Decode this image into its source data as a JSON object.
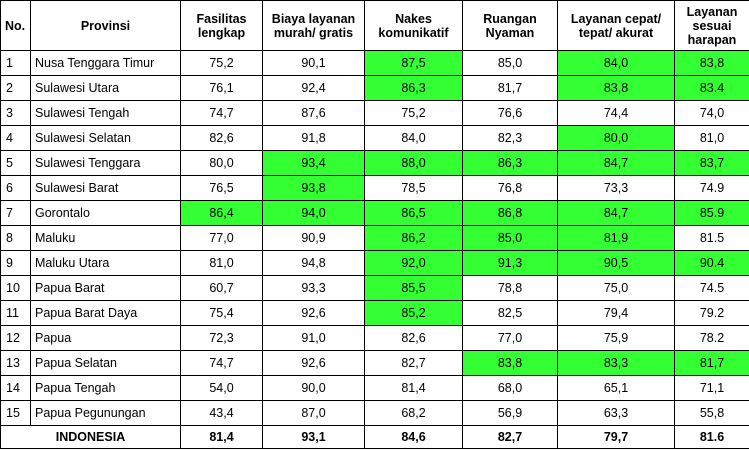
{
  "table": {
    "headers": [
      "No.",
      "Provinsi",
      "Fasilitas lengkap",
      "Biaya layanan murah/ gratis",
      "Nakes komunikatif",
      "Ruangan Nyaman",
      "Layanan cepat/ tepat/ akurat",
      "Layanan sesuai harapan"
    ],
    "highlight_color": "#33ff33",
    "rows": [
      {
        "no": "1",
        "provinsi": "Nusa Tenggara Timur",
        "values": [
          "75,2",
          "90,1",
          "87,5",
          "85,0",
          "84,0",
          "83,8"
        ],
        "highlight": [
          false,
          false,
          true,
          false,
          true,
          true
        ]
      },
      {
        "no": "2",
        "provinsi": "Sulawesi Utara",
        "values": [
          "76,1",
          "92,4",
          "86,3",
          "81,7",
          "83,8",
          "83.4"
        ],
        "highlight": [
          false,
          false,
          true,
          false,
          true,
          true
        ]
      },
      {
        "no": "3",
        "provinsi": "Sulawesi Tengah",
        "values": [
          "74,7",
          "87,6",
          "75,2",
          "76,6",
          "74,4",
          "74,0"
        ],
        "highlight": [
          false,
          false,
          false,
          false,
          false,
          false
        ]
      },
      {
        "no": "4",
        "provinsi": "Sulawesi Selatan",
        "values": [
          "82,6",
          "91,8",
          "84,0",
          "82,3",
          "80,0",
          "81,0"
        ],
        "highlight": [
          false,
          false,
          false,
          false,
          true,
          false
        ]
      },
      {
        "no": "5",
        "provinsi": "Sulawesi Tenggara",
        "values": [
          "80,0",
          "93,4",
          "88,0",
          "86,3",
          "84,7",
          "83,7"
        ],
        "highlight": [
          false,
          true,
          true,
          true,
          true,
          true
        ]
      },
      {
        "no": "6",
        "provinsi": "Sulawesi Barat",
        "values": [
          "76,5",
          "93,8",
          "78,5",
          "76,8",
          "73,3",
          "74.9"
        ],
        "highlight": [
          false,
          true,
          false,
          false,
          false,
          false
        ]
      },
      {
        "no": "7",
        "provinsi": "Gorontalo",
        "values": [
          "86,4",
          "94,0",
          "86,5",
          "86,8",
          "84,7",
          "85.9"
        ],
        "highlight": [
          true,
          true,
          true,
          true,
          true,
          true
        ]
      },
      {
        "no": "8",
        "provinsi": "Maluku",
        "values": [
          "77,0",
          "90,9",
          "86,2",
          "85,0",
          "81,9",
          "81.5"
        ],
        "highlight": [
          false,
          false,
          true,
          true,
          true,
          false
        ]
      },
      {
        "no": "9",
        "provinsi": "Maluku Utara",
        "values": [
          "81,0",
          "94,8",
          "92,0",
          "91,3",
          "90,5",
          "90.4"
        ],
        "highlight": [
          false,
          false,
          true,
          true,
          true,
          true
        ]
      },
      {
        "no": "10",
        "provinsi": "Papua Barat",
        "values": [
          "60,7",
          "93,3",
          "85,5",
          "78,8",
          "75,0",
          "74.5"
        ],
        "highlight": [
          false,
          false,
          true,
          false,
          false,
          false
        ]
      },
      {
        "no": "11",
        "provinsi": "Papua Barat Daya",
        "values": [
          "75,4",
          "92,6",
          "85,2",
          "82,5",
          "79,4",
          "79.2"
        ],
        "highlight": [
          false,
          false,
          true,
          false,
          false,
          false
        ]
      },
      {
        "no": "12",
        "provinsi": "Papua",
        "values": [
          "72,3",
          "91,0",
          "82,6",
          "77,0",
          "75,9",
          "78.2"
        ],
        "highlight": [
          false,
          false,
          false,
          false,
          false,
          false
        ]
      },
      {
        "no": "13",
        "provinsi": "Papua Selatan",
        "values": [
          "74,7",
          "92,6",
          "82,7",
          "83,8",
          "83,3",
          "81,7"
        ],
        "highlight": [
          false,
          false,
          false,
          true,
          true,
          true
        ]
      },
      {
        "no": "14",
        "provinsi": "Papua Tengah",
        "values": [
          "54,0",
          "90,0",
          "81,4",
          "68,0",
          "65,1",
          "71,1"
        ],
        "highlight": [
          false,
          false,
          false,
          false,
          false,
          false
        ]
      },
      {
        "no": "15",
        "provinsi": "Papua Pegunungan",
        "values": [
          "43,4",
          "87,0",
          "68,2",
          "56,9",
          "63,3",
          "55,8"
        ],
        "highlight": [
          false,
          false,
          false,
          false,
          false,
          false
        ]
      }
    ],
    "total": {
      "label": "INDONESIA",
      "values": [
        "81,4",
        "93,1",
        "84,6",
        "82,7",
        "79,7",
        "81.6"
      ]
    }
  }
}
